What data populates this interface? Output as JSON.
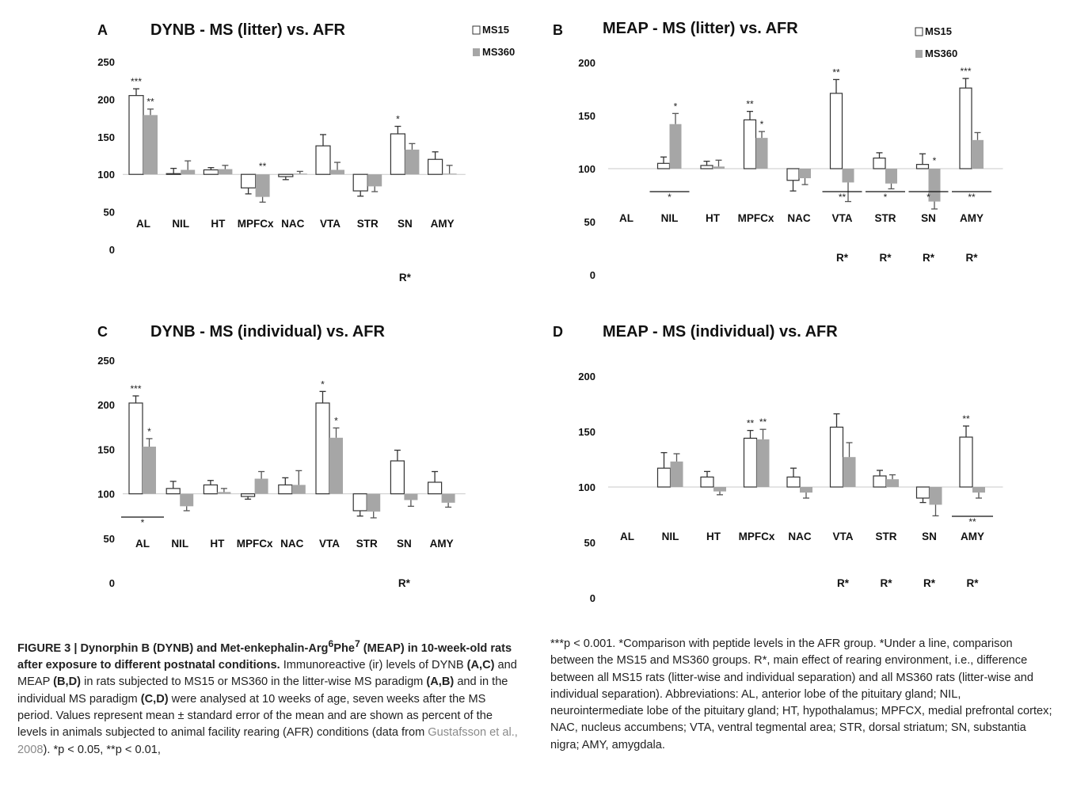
{
  "chart_data": [
    {
      "type": "bar",
      "panel_letter": "A",
      "title": "DYNB - MS (litter) vs. AFR",
      "categories": [
        "AL",
        "NIL",
        "HT",
        "MPFCx",
        "NAC",
        "VTA",
        "STR",
        "SN",
        "AMY"
      ],
      "ylim": [
        0,
        250
      ],
      "yticks": [
        "0",
        "50",
        "100",
        "150",
        "200",
        "250"
      ],
      "baseline": 100,
      "legend_position": "top-right",
      "series": [
        {
          "name": "MS15",
          "color": "#ffffff",
          "values": [
            205,
            101,
            106,
            82,
            97,
            138,
            78,
            154,
            120
          ],
          "errors": [
            9,
            7,
            3,
            8,
            4,
            15,
            7,
            10,
            10
          ],
          "stars": [
            "***",
            "",
            "",
            "",
            "",
            "",
            "",
            "*",
            ""
          ]
        },
        {
          "name": "MS360",
          "color": "#a6a6a6",
          "values": [
            179,
            106,
            107,
            70,
            101,
            106,
            84,
            133,
            101
          ],
          "errors": [
            8,
            12,
            5,
            7,
            3,
            10,
            7,
            8,
            11
          ],
          "stars": [
            "**",
            "",
            "",
            "**",
            "",
            "",
            "",
            "",
            ""
          ]
        }
      ],
      "group_stars": [
        "",
        "",
        "",
        "",
        "",
        "",
        "",
        "",
        ""
      ],
      "rearing_effect": [
        "",
        "",
        "",
        "",
        "",
        "",
        "",
        "R*",
        ""
      ]
    },
    {
      "type": "bar",
      "panel_letter": "B",
      "title": "MEAP - MS (litter) vs. AFR",
      "categories": [
        "AL",
        "NIL",
        "HT",
        "MPFCx",
        "NAC",
        "VTA",
        "STR",
        "SN",
        "AMY"
      ],
      "ylim": [
        0,
        200
      ],
      "yticks": [
        "0",
        "50",
        "100",
        "150",
        "200"
      ],
      "baseline": 100,
      "legend_position": "top-right",
      "series": [
        {
          "name": "MS15",
          "color": "#ffffff",
          "values": [
            null,
            105,
            103,
            146,
            89,
            171,
            110,
            104,
            176
          ],
          "errors": [
            null,
            6,
            4,
            8,
            10,
            13,
            5,
            10,
            9
          ],
          "stars": [
            "",
            "",
            "",
            "**",
            "",
            "**",
            "",
            "",
            "***"
          ]
        },
        {
          "name": "MS360",
          "color": "#a6a6a6",
          "values": [
            null,
            142,
            102,
            129,
            91,
            87,
            86,
            69,
            127
          ],
          "errors": [
            null,
            10,
            6,
            6,
            6,
            18,
            5,
            7,
            7
          ],
          "stars": [
            "",
            "*",
            "",
            "*",
            "",
            "",
            "",
            "*",
            ""
          ]
        }
      ],
      "group_stars": [
        "",
        "*",
        "",
        "",
        "",
        "**",
        "*",
        "*",
        "**"
      ],
      "rearing_effect": [
        "",
        "",
        "",
        "",
        "",
        "R*",
        "R*",
        "R*",
        "R*"
      ]
    },
    {
      "type": "bar",
      "panel_letter": "C",
      "title": "DYNB - MS (individual) vs. AFR",
      "categories": [
        "AL",
        "NIL",
        "HT",
        "MPFCx",
        "NAC",
        "VTA",
        "STR",
        "SN",
        "AMY"
      ],
      "ylim": [
        0,
        250
      ],
      "yticks": [
        "0",
        "50",
        "100",
        "150",
        "200",
        "250"
      ],
      "baseline": 100,
      "legend_position": "none",
      "series": [
        {
          "name": "MS15",
          "color": "#ffffff",
          "values": [
            202,
            106,
            110,
            97,
            110,
            202,
            81,
            137,
            113
          ],
          "errors": [
            8,
            8,
            5,
            3,
            8,
            13,
            6,
            12,
            12
          ],
          "stars": [
            "***",
            "",
            "",
            "",
            "",
            "*",
            "",
            "",
            ""
          ]
        },
        {
          "name": "MS360",
          "color": "#a6a6a6",
          "values": [
            153,
            86,
            102,
            117,
            110,
            163,
            80,
            93,
            90
          ],
          "errors": [
            9,
            5,
            4,
            8,
            16,
            11,
            7,
            7,
            5
          ],
          "stars": [
            "*",
            "",
            "",
            "",
            "",
            "*",
            "",
            "",
            ""
          ]
        }
      ],
      "group_stars": [
        "*",
        "",
        "",
        "",
        "",
        "",
        "",
        "",
        ""
      ],
      "rearing_effect": [
        "",
        "",
        "",
        "",
        "",
        "",
        "",
        "R*",
        ""
      ]
    },
    {
      "type": "bar",
      "panel_letter": "D",
      "title": "MEAP - MS (individual) vs. AFR",
      "categories": [
        "AL",
        "NIL",
        "HT",
        "MPFCx",
        "NAC",
        "VTA",
        "STR",
        "SN",
        "AMY"
      ],
      "ylim": [
        0,
        200
      ],
      "yticks": [
        "0",
        "50",
        "100",
        "150",
        "200"
      ],
      "baseline": 100,
      "legend_position": "none",
      "series": [
        {
          "name": "MS15",
          "color": "#ffffff",
          "values": [
            null,
            117,
            109,
            144,
            109,
            154,
            110,
            90,
            145
          ],
          "errors": [
            null,
            14,
            5,
            7,
            8,
            12,
            5,
            4,
            10
          ],
          "stars": [
            "",
            "",
            "",
            "**",
            "",
            "",
            "",
            "",
            "**"
          ]
        },
        {
          "name": "MS360",
          "color": "#a6a6a6",
          "values": [
            null,
            123,
            96,
            143,
            95,
            127,
            107,
            84,
            95
          ],
          "errors": [
            null,
            7,
            3,
            9,
            5,
            13,
            4,
            10,
            5
          ],
          "stars": [
            "",
            "",
            "",
            "**",
            "",
            "",
            "",
            "",
            ""
          ]
        }
      ],
      "group_stars": [
        "",
        "",
        "",
        "",
        "",
        "",
        "",
        "",
        "**"
      ],
      "rearing_effect": [
        "",
        "",
        "",
        "",
        "",
        "R*",
        "R*",
        "R*",
        "R*"
      ]
    }
  ],
  "caption": {
    "figure_label": "FIGURE 3 | Dynorphin B (DYNB) and Met-enkephalin-Arg",
    "sup1": "6",
    "phe": "Phe",
    "sup2": "7",
    "title_rest": " (MEAP) in 10-week-old rats after exposure to different postnatal conditions.",
    "t1": " Immunoreactive (ir) levels of DYNB ",
    "ac1": "(A,C)",
    "t2": " and MEAP ",
    "bd": "(B,D)",
    "t3": " in rats subjected to MS15 or MS360 in the litter-wise MS paradigm ",
    "ab": "(A,B)",
    "t4": " and in the individual MS paradigm ",
    "cd": "(C,D)",
    "t5": " were analysed at 10 weeks of age, seven weeks after the MS period. Values represent mean ± standard error of the mean and are shown as percent of the levels in animals subjected to animal facility rearing (AFR) conditions (data from ",
    "citation": "Gustafsson et al., 2008",
    "t6": "). *p < 0.05, **p < 0.01,",
    "right_text": "***p < 0.001. *Comparison with peptide levels in the AFR group. *Under a line, comparison between the MS15 and MS360 groups. R*, main effect of rearing environment, i.e., difference between all MS15 rats (litter-wise and individual separation) and all MS360 rats (litter-wise and individual separation). Abbreviations: AL, anterior lobe of the pituitary gland; NIL, neurointermediate lobe of the pituitary gland; HT, hypothalamus; MPFCX, medial prefrontal cortex; NAC, nucleus accumbens; VTA, ventral tegmental area; STR, dorsal striatum; SN, substantia nigra; AMY, amygdala."
  }
}
